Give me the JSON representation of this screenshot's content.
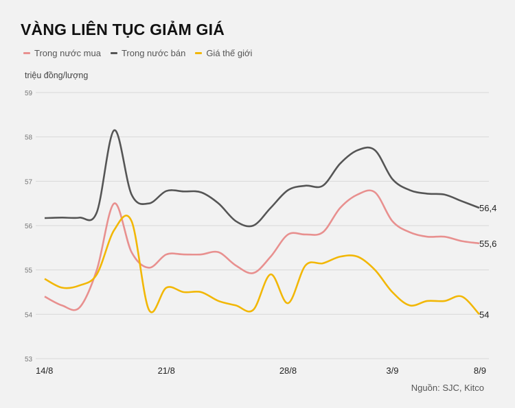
{
  "chart_data": {
    "type": "line",
    "title": "VÀNG LIÊN TỤC GIẢM GIÁ",
    "ylabel": "triệu đồng/lượng",
    "source": "Nguồn: SJC, Kitco",
    "ylim": [
      53,
      59
    ],
    "yticks": [
      "59",
      "58",
      "57",
      "56",
      "55",
      "54",
      "53"
    ],
    "xticks": [
      {
        "label": "14/8",
        "day": 0
      },
      {
        "label": "21/8",
        "day": 7
      },
      {
        "label": "28/8",
        "day": 14
      },
      {
        "label": "3/9",
        "day": 20
      },
      {
        "label": "8/9",
        "day": 25
      }
    ],
    "x": [
      "14/8",
      "15/8",
      "16/8",
      "17/8",
      "18/8",
      "19/8",
      "20/8",
      "21/8",
      "22/8",
      "23/8",
      "24/8",
      "25/8",
      "26/8",
      "27/8",
      "28/8",
      "29/8",
      "30/8",
      "31/8",
      "1/9",
      "2/9",
      "3/9",
      "4/9",
      "5/9",
      "6/9",
      "7/9",
      "8/9"
    ],
    "grid": true,
    "legend": "top-left",
    "series": [
      {
        "name": "Trong nước mua",
        "color": "#e8908f",
        "end_label": "55,6",
        "values": [
          54.4,
          54.2,
          54.15,
          55.0,
          56.5,
          55.4,
          55.05,
          55.35,
          55.35,
          55.35,
          55.4,
          55.1,
          54.93,
          55.3,
          55.8,
          55.8,
          55.85,
          56.4,
          56.7,
          56.75,
          56.1,
          55.85,
          55.75,
          55.75,
          55.65,
          55.6
        ]
      },
      {
        "name": "Trong nước bán",
        "color": "#555555",
        "end_label": "56,4",
        "values": [
          56.17,
          56.18,
          56.18,
          56.3,
          58.15,
          56.7,
          56.5,
          56.78,
          56.77,
          56.75,
          56.5,
          56.1,
          56.0,
          56.4,
          56.8,
          56.9,
          56.9,
          57.4,
          57.7,
          57.7,
          57.05,
          56.8,
          56.72,
          56.7,
          56.55,
          56.4
        ]
      },
      {
        "name": "Giá thế giới",
        "color": "#f2b705",
        "end_label": "54",
        "values": [
          54.8,
          54.6,
          54.65,
          54.9,
          55.9,
          56.1,
          54.1,
          54.6,
          54.5,
          54.5,
          54.3,
          54.2,
          54.1,
          54.9,
          54.25,
          55.1,
          55.15,
          55.3,
          55.3,
          55.0,
          54.5,
          54.2,
          54.3,
          54.3,
          54.4,
          54.0
        ]
      }
    ]
  }
}
